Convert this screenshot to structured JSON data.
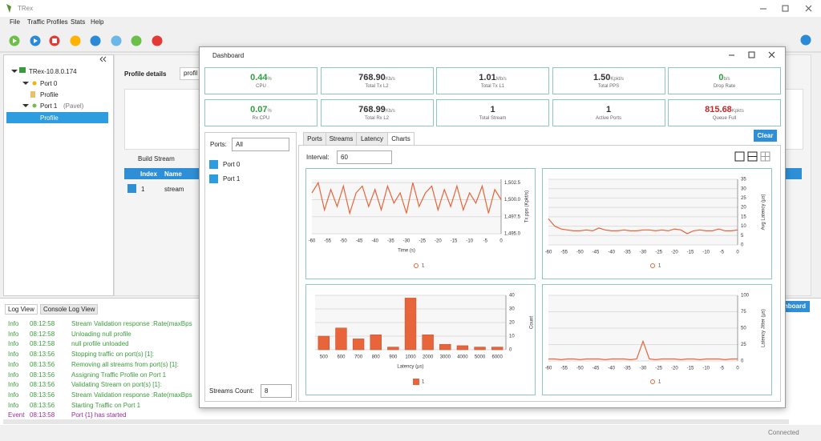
{
  "app": {
    "title": "TRex",
    "menu": [
      "File",
      "Traffic Profiles",
      "Stats",
      "Help"
    ],
    "tree": [
      "TRex-10.8.0.174",
      "Port 0",
      "Profile",
      "Port 1",
      "(Pavel)",
      "Profile"
    ],
    "profile": {
      "label": "Profile details",
      "input": "profil",
      "build": "Build Stream",
      "headers": [
        "Index",
        "Name"
      ],
      "row": [
        "1",
        "stream"
      ]
    },
    "log": {
      "tabs": [
        "Log View",
        "Console Log View"
      ],
      "level_colors": {
        "Info": "#3c9d3c",
        "Event": "#9c2a9c"
      },
      "entries": [
        [
          "Info",
          "08:12:58",
          "Stream Validation response :Rate(maxBps"
        ],
        [
          "Info",
          "08:12:58",
          "Unloading null profile"
        ],
        [
          "Info",
          "08:12:58",
          "null profile unloaded"
        ],
        [
          "Info",
          "08:13:56",
          "Stopping traffic on port(s) [1]:"
        ],
        [
          "Info",
          "08:13:56",
          "Removing all streams from port(s) [1]:"
        ],
        [
          "Info",
          "08:13:56",
          "Assigning Traffic Profile on Port 1"
        ],
        [
          "Info",
          "08:13:56",
          "Validating Stream on port(s) [1]:"
        ],
        [
          "Info",
          "08:13:56",
          "Stream Validation response :Rate(maxBps"
        ],
        [
          "Info",
          "08:13:56",
          "Starting Traffic on Port 1"
        ],
        [
          "Event",
          "08:13:58",
          "Port {1} has started"
        ]
      ]
    },
    "dashboard_button": "Dashboard",
    "status": "Connected"
  },
  "dashboard": {
    "title": "Dashboard",
    "stats": [
      {
        "value": "0.44",
        "unit": "%",
        "label": "CPU",
        "color": "#2e9e3e"
      },
      {
        "value": "768.90",
        "unit": "Kb/s",
        "label": "Total Tx L2",
        "color": "#333333"
      },
      {
        "value": "1.01",
        "unit": "Mb/s",
        "label": "Total Tx L1",
        "color": "#333333"
      },
      {
        "value": "1.50",
        "unit": "Kpkt/s",
        "label": "Total PPS",
        "color": "#333333"
      },
      {
        "value": "0",
        "unit": "b/s",
        "label": "Drop Rate",
        "color": "#2e9e3e"
      },
      {
        "value": "0.07",
        "unit": "%",
        "label": "Rx CPU",
        "color": "#2e9e3e"
      },
      {
        "value": "768.99",
        "unit": "Kb/s",
        "label": "Total Rx L2",
        "color": "#333333"
      },
      {
        "value": "1",
        "label": "Total Stream",
        "color": "#333333"
      },
      {
        "value": "1",
        "label": "Active Ports",
        "color": "#333333"
      },
      {
        "value": "815.68",
        "unit": "Kpkts",
        "label": "Queue Full",
        "color": "#c8262b"
      }
    ],
    "ports_label": "Ports:",
    "ports_value": "All",
    "ports": [
      "Port 0",
      "Port 1"
    ],
    "streams_count_label": "Streams Count:",
    "streams_count": "8",
    "tabs": [
      "Ports",
      "Streams",
      "Latency",
      "Charts"
    ],
    "active_tab": 3,
    "clear": "Clear",
    "interval_label": "Interval:",
    "interval": "60"
  },
  "chart_data": [
    {
      "type": "line",
      "xlabel": "Time (s)",
      "ylabel": "Tx pps (Kpkt/s)",
      "x": [
        -60,
        -58,
        -56,
        -54,
        -52,
        -50,
        -48,
        -46,
        -44,
        -42,
        -40,
        -38,
        -36,
        -34,
        -32,
        -30,
        -28,
        -26,
        -24,
        -22,
        -20,
        -18,
        -16,
        -14,
        -12,
        -10,
        -8,
        -6,
        -4,
        -2,
        0
      ],
      "series": [
        {
          "name": "1",
          "color": "#e8643a",
          "values": [
            1501,
            1502.5,
            1498.5,
            1501.5,
            1499,
            1502,
            1498,
            1501,
            1502,
            1499,
            1501.5,
            1498.5,
            1502,
            1499.5,
            1501,
            1498,
            1502.5,
            1499,
            1501,
            1502,
            1498.5,
            1501.5,
            1499,
            1502,
            1498.5,
            1501,
            1499.5,
            1502,
            1498,
            1501.5,
            1500
          ]
        }
      ],
      "xlim": [
        -60,
        0
      ],
      "xticks": [
        -60,
        -55,
        -50,
        -45,
        -40,
        -35,
        -30,
        -25,
        -20,
        -15,
        -10,
        -5,
        0
      ],
      "ylim": [
        1495,
        1503
      ],
      "yticks": [
        {
          "value": 1495,
          "label": "1,495.0"
        },
        {
          "value": 1497.5,
          "label": "1,497.5"
        },
        {
          "value": 1500,
          "label": "1,500.0"
        },
        {
          "value": 1502.5,
          "label": "1,502.5"
        }
      ]
    },
    {
      "type": "line",
      "ylabel": "Avg Latency (µs)",
      "x": [
        -60,
        -58,
        -56,
        -54,
        -52,
        -50,
        -48,
        -46,
        -44,
        -42,
        -40,
        -38,
        -36,
        -34,
        -32,
        -30,
        -28,
        -26,
        -24,
        -22,
        -20,
        -18,
        -16,
        -14,
        -12,
        -10,
        -8,
        -6,
        -4,
        -2,
        0
      ],
      "series": [
        {
          "name": "1",
          "color": "#e8643a",
          "values": [
            14,
            10,
            8.5,
            8,
            7.5,
            7.5,
            8,
            7.5,
            9,
            8,
            7.5,
            7.5,
            8,
            7.5,
            7.5,
            8,
            8,
            7.5,
            8,
            7.5,
            8.5,
            8,
            6,
            7.5,
            8,
            7.5,
            7.5,
            8.5,
            7.5,
            7.5,
            8
          ]
        }
      ],
      "xlim": [
        -60,
        0
      ],
      "xticks": [
        -60,
        -55,
        -50,
        -45,
        -40,
        -35,
        -30,
        -25,
        -20,
        -15,
        -10,
        -5,
        0
      ],
      "ylim": [
        0,
        35
      ],
      "yticks": [
        0,
        5,
        10,
        15,
        20,
        25,
        30,
        35
      ]
    },
    {
      "type": "bar",
      "xlabel": "Latency (µs)",
      "ylabel": "Count",
      "categories": [
        "500",
        "600",
        "700",
        "800",
        "900",
        "1000",
        "2000",
        "3000",
        "4000",
        "5000",
        "6000"
      ],
      "series": [
        {
          "name": "1",
          "color": "#e8643a",
          "values": [
            10,
            16,
            8,
            11,
            2,
            38,
            11,
            4,
            3,
            2,
            2
          ]
        }
      ],
      "ylim": [
        0,
        40
      ],
      "yticks": [
        0,
        10,
        20,
        30,
        40
      ]
    },
    {
      "type": "line",
      "ylabel": "Latency Jitter (µs)",
      "x": [
        -60,
        -58,
        -56,
        -54,
        -52,
        -50,
        -48,
        -46,
        -44,
        -42,
        -40,
        -38,
        -36,
        -34,
        -32,
        -30,
        -28,
        -26,
        -24,
        -22,
        -20,
        -18,
        -16,
        -14,
        -12,
        -10,
        -8,
        -6,
        -4,
        -2,
        0
      ],
      "series": [
        {
          "name": "1",
          "color": "#e8643a",
          "values": [
            3,
            3,
            2,
            3,
            3,
            2,
            3,
            3,
            3,
            2,
            3,
            3,
            3,
            2,
            3,
            30,
            3,
            2,
            3,
            3,
            3,
            2,
            3,
            3,
            2,
            3,
            3,
            3,
            2,
            3,
            3
          ]
        }
      ],
      "xlim": [
        -60,
        0
      ],
      "xticks": [
        -60,
        -55,
        -50,
        -45,
        -40,
        -35,
        -30,
        -25,
        -20,
        -15,
        -10,
        -5,
        0
      ],
      "ylim": [
        0,
        100
      ],
      "yticks": [
        0,
        25,
        50,
        75,
        100
      ]
    }
  ]
}
